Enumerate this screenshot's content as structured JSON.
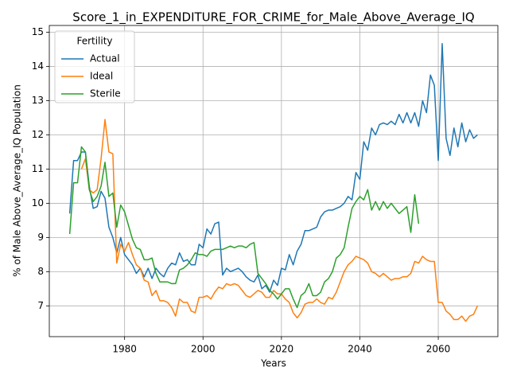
{
  "chart_data": {
    "type": "line",
    "title": "Score_1_in_EXPENDITURE_FOR_CRIME_for_Male_Above_Average_IQ",
    "xlabel": "Years",
    "ylabel": "% of Male Above_Average_IQ Population",
    "legend_title": "Fertility",
    "legend": "upper left",
    "grid": true,
    "x": [
      1966,
      1967,
      1968,
      1969,
      1970,
      1971,
      1972,
      1973,
      1974,
      1975,
      1976,
      1977,
      1978,
      1979,
      1980,
      1981,
      1982,
      1983,
      1984,
      1985,
      1986,
      1987,
      1988,
      1989,
      1990,
      1991,
      1992,
      1993,
      1994,
      1995,
      1996,
      1997,
      1998,
      1999,
      2000,
      2001,
      2002,
      2003,
      2004,
      2005,
      2006,
      2007,
      2008,
      2009,
      2010,
      2011,
      2012,
      2013,
      2014,
      2015,
      2016,
      2017,
      2018,
      2019,
      2020,
      2021,
      2022,
      2023,
      2024,
      2025,
      2026,
      2027,
      2028,
      2029,
      2030,
      2031,
      2032,
      2033,
      2034,
      2035,
      2036,
      2037,
      2038,
      2039,
      2040,
      2041,
      2042,
      2043,
      2044,
      2045,
      2046,
      2047,
      2048,
      2049,
      2050,
      2051,
      2052,
      2053,
      2054,
      2055,
      2056,
      2057,
      2058,
      2059,
      2060,
      2061,
      2062,
      2063,
      2064,
      2065,
      2066,
      2067,
      2068,
      2069,
      2070
    ],
    "series": [
      {
        "name": "Actual",
        "color": "#1f77b4",
        "values": [
          9.7,
          11.25,
          11.25,
          11.5,
          11.5,
          10.5,
          9.85,
          9.9,
          10.35,
          10.15,
          9.3,
          9.0,
          8.55,
          9.0,
          8.5,
          8.35,
          8.2,
          7.95,
          8.1,
          7.85,
          8.1,
          7.8,
          8.1,
          7.95,
          7.85,
          8.1,
          8.25,
          8.2,
          8.55,
          8.3,
          8.35,
          8.2,
          8.2,
          8.8,
          8.7,
          9.25,
          9.1,
          9.4,
          9.45,
          7.9,
          8.1,
          8.0,
          8.05,
          8.1,
          8.0,
          7.85,
          7.75,
          7.7,
          7.9,
          7.5,
          7.6,
          7.4,
          7.75,
          7.6,
          8.1,
          8.05,
          8.5,
          8.2,
          8.6,
          8.8,
          9.2,
          9.2,
          9.25,
          9.3,
          9.6,
          9.75,
          9.8,
          9.8,
          9.85,
          9.9,
          10.0,
          10.2,
          10.1,
          10.9,
          10.7,
          11.8,
          11.55,
          12.2,
          12.0,
          12.3,
          12.35,
          12.3,
          12.4,
          12.3,
          12.6,
          12.35,
          12.65,
          12.35,
          12.65,
          12.25,
          13.0,
          12.65,
          13.75,
          13.45,
          11.25,
          14.67,
          11.9,
          11.4,
          12.2,
          11.65,
          12.35,
          11.8,
          12.15,
          11.9,
          12.0
        ]
      },
      {
        "name": "Ideal",
        "color": "#ff7f0e",
        "values": [
          null,
          null,
          null,
          11.0,
          11.3,
          10.4,
          10.3,
          10.4,
          11.3,
          12.45,
          11.5,
          11.45,
          8.25,
          8.8,
          8.6,
          8.85,
          8.5,
          8.2,
          8.1,
          7.75,
          7.7,
          7.3,
          7.45,
          7.15,
          7.15,
          7.1,
          6.95,
          6.7,
          7.2,
          7.1,
          7.1,
          6.85,
          6.8,
          7.25,
          7.25,
          7.3,
          7.2,
          7.4,
          7.55,
          7.5,
          7.65,
          7.6,
          7.65,
          7.6,
          7.45,
          7.3,
          7.25,
          7.35,
          7.45,
          7.4,
          7.25,
          7.25,
          7.45,
          7.35,
          7.35,
          7.2,
          7.1,
          6.8,
          6.65,
          6.8,
          7.05,
          7.1,
          7.1,
          7.2,
          7.1,
          7.05,
          7.25,
          7.2,
          7.4,
          7.7,
          8.0,
          8.2,
          8.3,
          8.45,
          8.4,
          8.35,
          8.25,
          8.0,
          7.95,
          7.85,
          7.95,
          7.85,
          7.75,
          7.8,
          7.8,
          7.85,
          7.85,
          7.95,
          8.3,
          8.25,
          8.45,
          8.35,
          8.3,
          8.3,
          7.1,
          7.1,
          6.85,
          6.75,
          6.6,
          6.6,
          6.7,
          6.55,
          6.7,
          6.75,
          7.0
        ]
      },
      {
        "name": "Sterile",
        "color": "#2ca02c",
        "values": [
          9.1,
          10.6,
          10.6,
          11.65,
          11.5,
          10.4,
          10.05,
          10.2,
          10.5,
          11.2,
          10.2,
          10.3,
          9.3,
          9.95,
          9.75,
          9.35,
          8.95,
          8.7,
          8.65,
          8.35,
          8.35,
          8.4,
          7.95,
          7.7,
          7.7,
          7.7,
          7.65,
          7.65,
          8.05,
          8.1,
          8.2,
          8.35,
          8.55,
          8.5,
          8.5,
          8.45,
          8.6,
          8.65,
          8.65,
          8.65,
          8.7,
          8.75,
          8.7,
          8.75,
          8.75,
          8.7,
          8.8,
          8.85,
          7.95,
          7.8,
          7.65,
          7.45,
          7.35,
          7.2,
          7.35,
          7.5,
          7.5,
          7.2,
          6.95,
          7.3,
          7.4,
          7.65,
          7.3,
          7.3,
          7.4,
          7.7,
          7.8,
          8.0,
          8.4,
          8.5,
          8.7,
          9.3,
          9.85,
          10.05,
          10.2,
          10.1,
          10.4,
          9.8,
          10.05,
          9.8,
          10.05,
          9.85,
          10.0,
          9.85,
          9.7,
          9.8,
          9.9,
          9.15,
          10.25,
          9.4,
          null,
          null,
          null,
          null,
          null,
          null,
          null,
          null,
          null,
          null,
          null,
          null,
          null,
          null,
          null
        ]
      }
    ],
    "xlim": [
      1960.8,
      2075.2
    ],
    "xticks": [
      1980,
      2000,
      2020,
      2040,
      2060
    ],
    "ylim": [
      6.1,
      15.2
    ],
    "yticks": [
      7,
      8,
      9,
      10,
      11,
      12,
      13,
      14,
      15
    ]
  }
}
